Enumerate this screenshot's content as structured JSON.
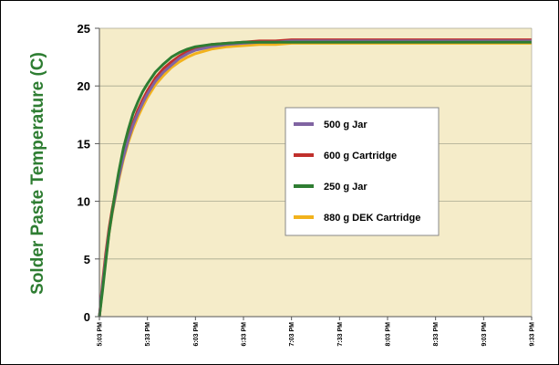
{
  "chart_data": {
    "type": "line",
    "title": "",
    "xlabel": "",
    "ylabel": "Solder Paste Temperature (C)",
    "ylim": [
      0,
      25
    ],
    "y_ticks": [
      0,
      5,
      10,
      15,
      20,
      25
    ],
    "x_ticks": [
      "5:03 PM",
      "5:33 PM",
      "6:03 PM",
      "6:33 PM",
      "7:03 PM",
      "7:33 PM",
      "8:03 PM",
      "8:33 PM",
      "9:03 PM",
      "9:33 PM"
    ],
    "x_minutes_from_first_tick": [
      0,
      30,
      60,
      90,
      120,
      150,
      180,
      210,
      240,
      270
    ],
    "grid": true,
    "legend_position": "center-right",
    "plot_background": "#f5ecc9",
    "series": [
      {
        "name": "500 g Jar",
        "color": "#8064a2",
        "x": [
          0,
          2,
          4,
          6,
          8,
          10,
          12,
          15,
          18,
          21,
          24,
          27,
          30,
          35,
          40,
          45,
          50,
          55,
          60,
          70,
          80,
          90,
          100,
          110,
          120,
          150,
          180,
          210,
          240,
          270
        ],
        "y": [
          0,
          2.7,
          5.1,
          7.3,
          9.0,
          10.5,
          12.0,
          13.8,
          15.3,
          16.6,
          17.6,
          18.5,
          19.3,
          20.4,
          21.2,
          21.8,
          22.4,
          22.8,
          23.1,
          23.4,
          23.6,
          23.7,
          23.8,
          23.8,
          23.9,
          23.9,
          23.9,
          23.9,
          23.9,
          23.9
        ]
      },
      {
        "name": "600 g Cartridge",
        "color": "#c0302c",
        "x": [
          0,
          2,
          4,
          6,
          8,
          10,
          12,
          15,
          18,
          21,
          24,
          27,
          30,
          35,
          40,
          45,
          50,
          55,
          60,
          70,
          80,
          90,
          100,
          110,
          120,
          150,
          180,
          210,
          240,
          270
        ],
        "y": [
          0,
          3.0,
          5.5,
          7.6,
          9.3,
          10.8,
          12.2,
          14.0,
          15.5,
          16.8,
          17.9,
          18.8,
          19.6,
          20.7,
          21.5,
          22.1,
          22.6,
          23.0,
          23.3,
          23.6,
          23.7,
          23.8,
          23.9,
          23.9,
          24.0,
          24.0,
          24.0,
          24.0,
          24.0,
          24.0
        ]
      },
      {
        "name": "250 g Jar",
        "color": "#2e7d32",
        "x": [
          0,
          2,
          4,
          6,
          8,
          10,
          12,
          15,
          18,
          21,
          24,
          27,
          30,
          35,
          40,
          45,
          50,
          55,
          60,
          70,
          80,
          90,
          100,
          110,
          120,
          150,
          180,
          210,
          240,
          270
        ],
        "y": [
          0,
          2.3,
          4.8,
          7.2,
          9.1,
          10.9,
          12.5,
          14.6,
          16.2,
          17.6,
          18.6,
          19.5,
          20.2,
          21.2,
          21.9,
          22.5,
          22.9,
          23.2,
          23.4,
          23.6,
          23.7,
          23.8,
          23.8,
          23.8,
          23.8,
          23.8,
          23.8,
          23.8,
          23.8,
          23.8
        ]
      },
      {
        "name": "880 g DEK Cartridge",
        "color": "#f2b21c",
        "x": [
          0,
          2,
          4,
          6,
          8,
          10,
          12,
          15,
          18,
          21,
          24,
          27,
          30,
          35,
          40,
          45,
          50,
          55,
          60,
          70,
          80,
          90,
          100,
          110,
          120,
          150,
          180,
          210,
          240,
          270
        ],
        "y": [
          0,
          2.6,
          5.0,
          7.2,
          8.9,
          10.4,
          11.8,
          13.6,
          15.1,
          16.3,
          17.3,
          18.2,
          19.0,
          20.1,
          20.9,
          21.6,
          22.1,
          22.5,
          22.8,
          23.2,
          23.4,
          23.5,
          23.6,
          23.6,
          23.7,
          23.7,
          23.7,
          23.7,
          23.7,
          23.7
        ]
      }
    ]
  }
}
